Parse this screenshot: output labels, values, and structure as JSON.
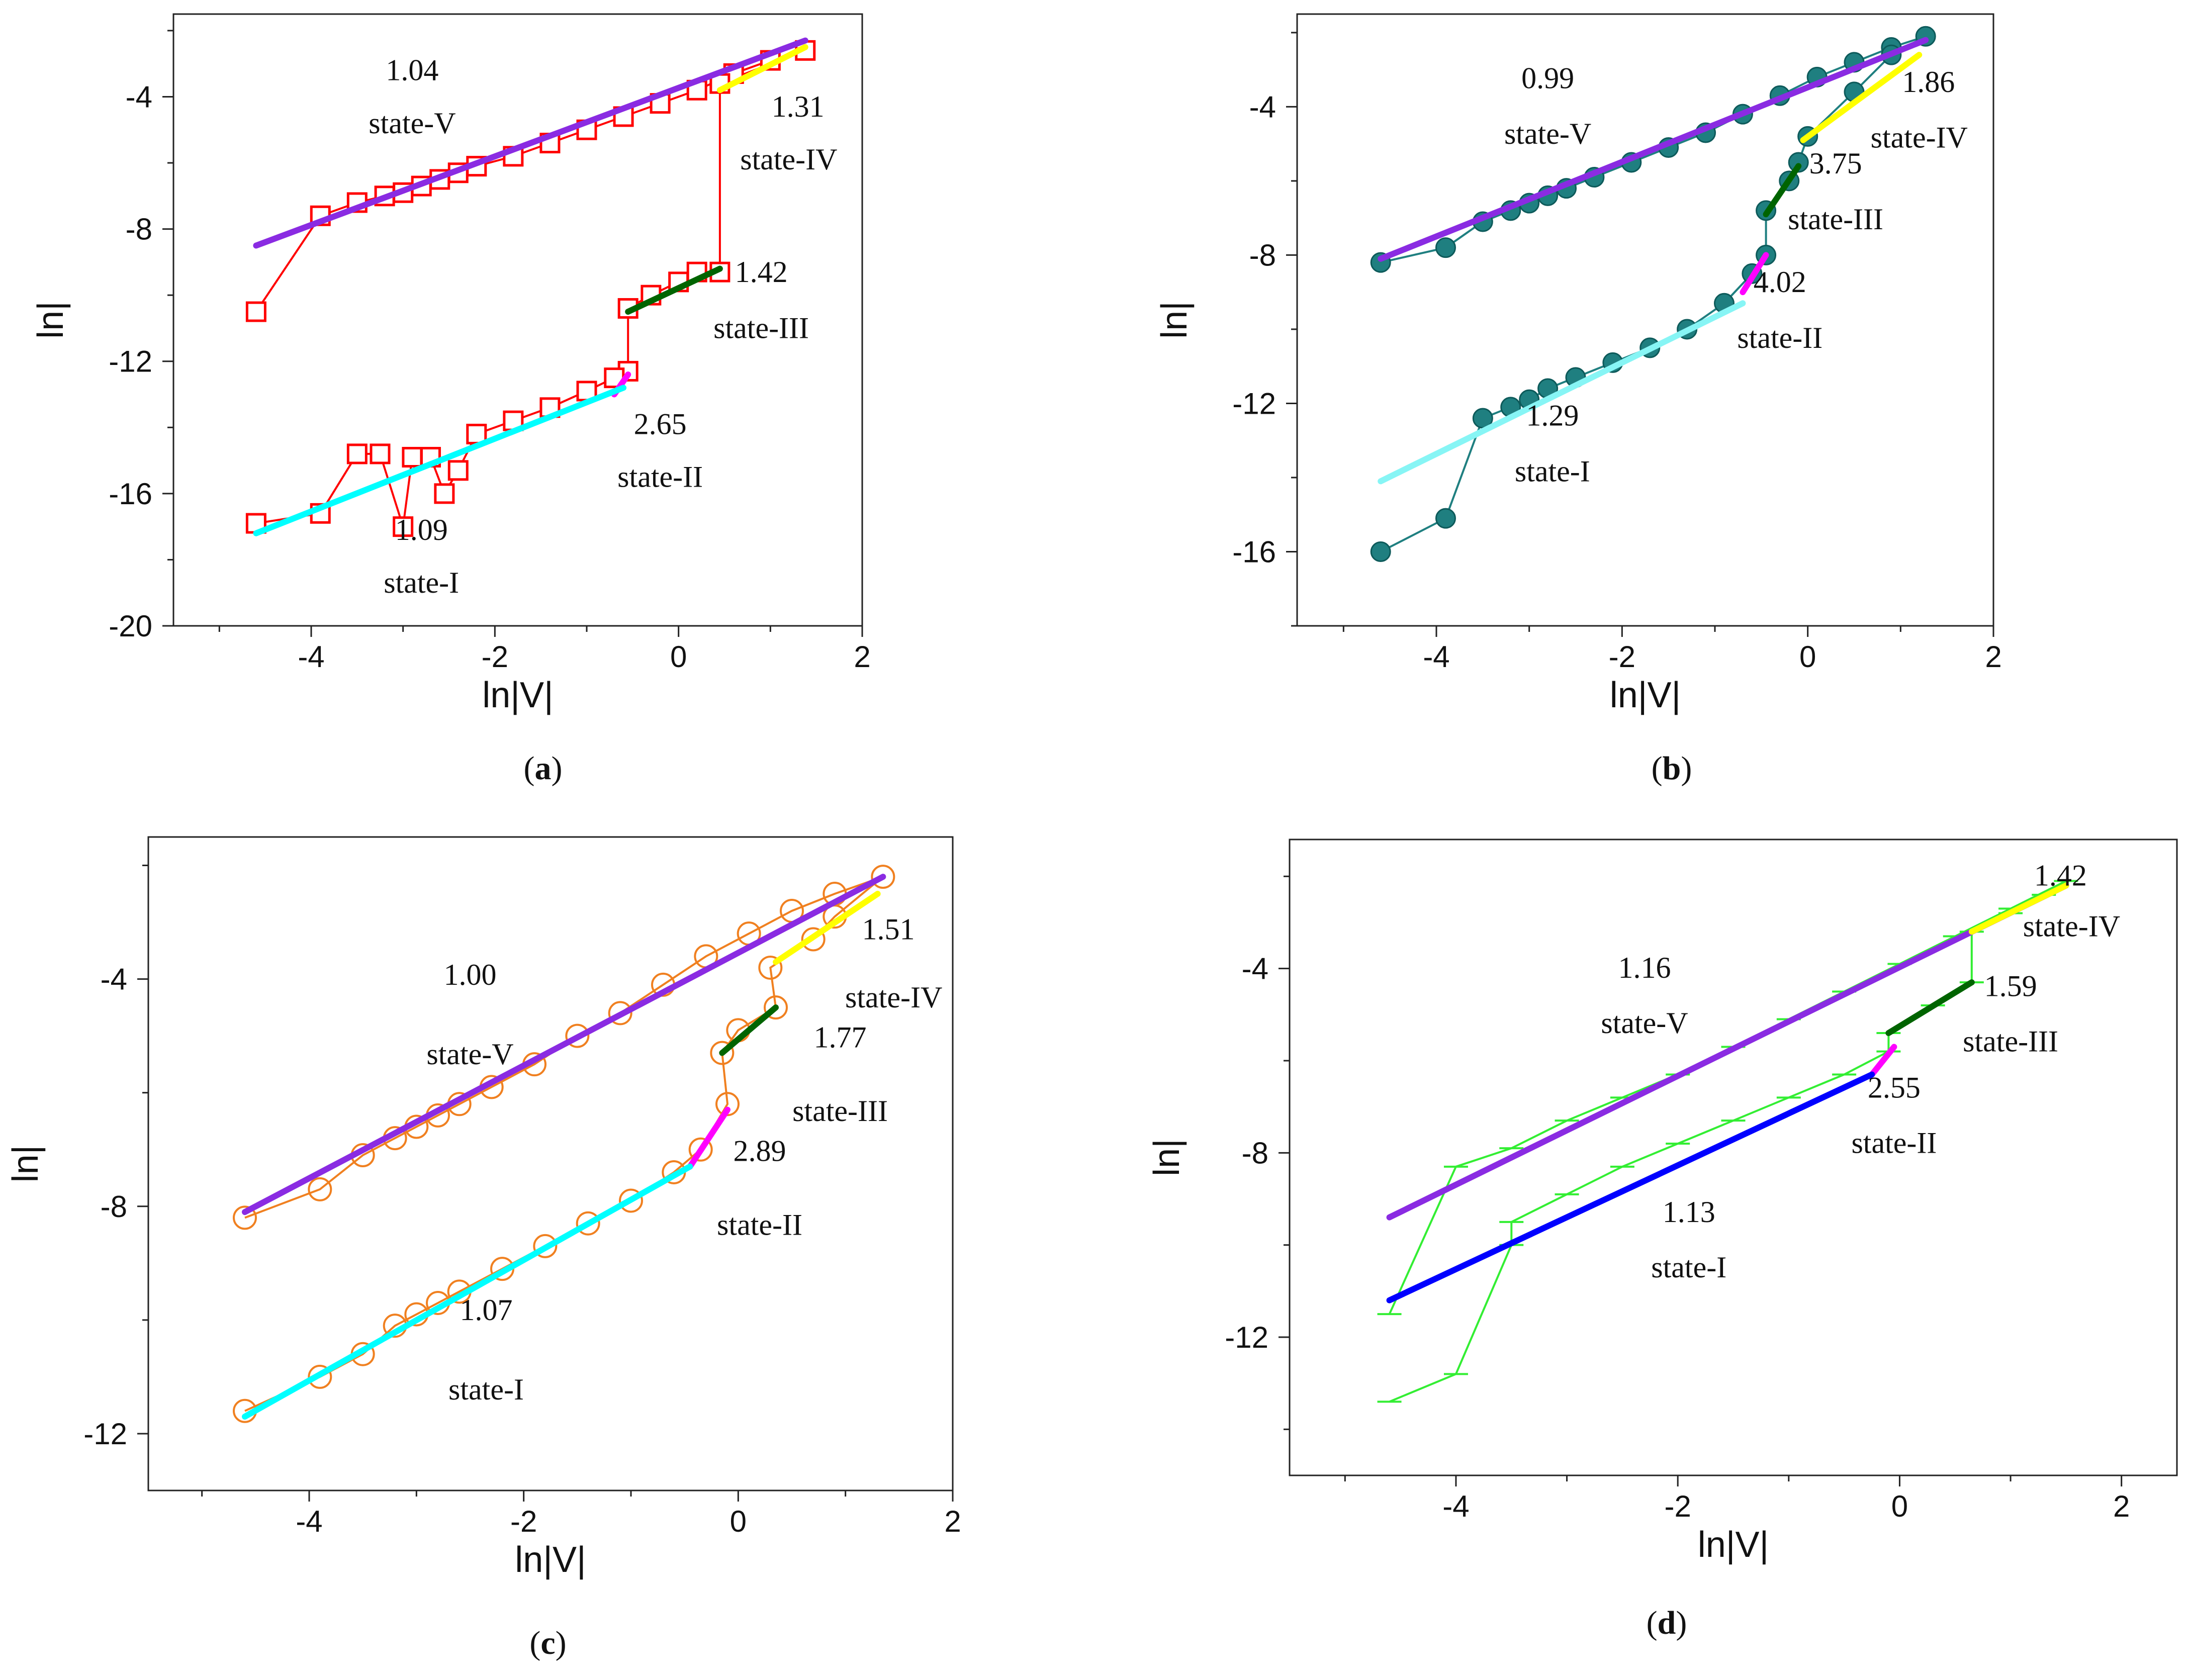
{
  "chart_data": [
    {
      "type": "line",
      "panel_label": "a",
      "caption_open": "(",
      "caption_close": ")",
      "xlabel": "ln|V|",
      "ylabel": "ln|",
      "xlim": [
        -5.5,
        2
      ],
      "ylim": [
        -20,
        -1.5
      ],
      "xticks": [
        -4,
        -2,
        0,
        2
      ],
      "yticks": [
        -4,
        -8,
        -12,
        -16,
        -20
      ],
      "colors": {
        "marker": "#ff0000"
      },
      "marker": "open-square",
      "data": [
        [
          -4.6,
          -10.5
        ],
        [
          -3.9,
          -7.6
        ],
        [
          -3.5,
          -7.2
        ],
        [
          -3.2,
          -7.0
        ],
        [
          -3.0,
          -6.9
        ],
        [
          -2.8,
          -6.7
        ],
        [
          -2.6,
          -6.5
        ],
        [
          -2.4,
          -6.3
        ],
        [
          -2.2,
          -6.1
        ],
        [
          -1.8,
          -5.8
        ],
        [
          -1.4,
          -5.4
        ],
        [
          -1.0,
          -5.0
        ],
        [
          -0.6,
          -4.6
        ],
        [
          -0.2,
          -4.2
        ],
        [
          0.2,
          -3.8
        ],
        [
          0.6,
          -3.3
        ],
        [
          1.0,
          -2.9
        ],
        [
          1.38,
          -2.6
        ],
        [
          0.45,
          -3.6
        ],
        [
          0.45,
          -9.3
        ],
        [
          0.2,
          -9.3
        ],
        [
          0.0,
          -9.6
        ],
        [
          -0.3,
          -10.0
        ],
        [
          -0.55,
          -10.4
        ],
        [
          -0.55,
          -12.3
        ],
        [
          -0.7,
          -12.5
        ],
        [
          -1.0,
          -12.9
        ],
        [
          -1.4,
          -13.4
        ],
        [
          -1.8,
          -13.8
        ],
        [
          -2.2,
          -14.2
        ],
        [
          -2.4,
          -15.3
        ],
        [
          -2.55,
          -16.0
        ],
        [
          -2.7,
          -14.9
        ],
        [
          -2.9,
          -14.9
        ],
        [
          -3.0,
          -17.0
        ],
        [
          -3.25,
          -14.8
        ],
        [
          -3.5,
          -14.8
        ],
        [
          -3.9,
          -16.6
        ],
        [
          -4.6,
          -16.9
        ]
      ],
      "fits": [
        {
          "state": "state-V",
          "slope_label": "1.04",
          "color": "#8a2be2",
          "x": [
            -4.6,
            1.38
          ],
          "y": [
            -8.5,
            -2.3
          ],
          "slope_pos": [
            -2.9,
            -3.5
          ],
          "state_pos": [
            -2.9,
            -5.1
          ],
          "anchor": "middle"
        },
        {
          "state": "state-IV",
          "slope_label": "1.31",
          "color": "#ffff00",
          "x": [
            0.45,
            1.38
          ],
          "y": [
            -3.8,
            -2.5
          ],
          "slope_pos": [
            1.3,
            -4.6
          ],
          "state_pos": [
            1.2,
            -6.2
          ],
          "anchor": "middle"
        },
        {
          "state": "state-III",
          "slope_label": "1.42",
          "color": "#006400",
          "x": [
            -0.55,
            0.45
          ],
          "y": [
            -10.5,
            -9.2
          ],
          "slope_pos": [
            0.9,
            -9.6
          ],
          "state_pos": [
            0.9,
            -11.3
          ],
          "anchor": "middle"
        },
        {
          "state": "state-II",
          "slope_label": "2.65",
          "color": "#ff00ff",
          "x": [
            -0.7,
            -0.55
          ],
          "y": [
            -13.0,
            -12.4
          ],
          "slope_pos": [
            -0.2,
            -14.2
          ],
          "state_pos": [
            -0.2,
            -15.8
          ],
          "anchor": "middle"
        },
        {
          "state": "state-I",
          "slope_label": "1.09",
          "color": "#00ffff",
          "x": [
            -4.6,
            -0.6
          ],
          "y": [
            -17.2,
            -12.8
          ],
          "slope_pos": [
            -2.8,
            -17.4
          ],
          "state_pos": [
            -2.8,
            -19.0
          ],
          "anchor": "middle"
        }
      ]
    },
    {
      "type": "line",
      "panel_label": "b",
      "caption_open": "(",
      "caption_close": ")",
      "xlabel": "ln|V|",
      "ylabel": "ln|",
      "xlim": [
        -5.5,
        2
      ],
      "ylim": [
        -18,
        -1.5
      ],
      "xticks": [
        -4,
        -2,
        0,
        2
      ],
      "yticks": [
        -4,
        -8,
        -12,
        -16
      ],
      "colors": {
        "marker": "#1f7f80"
      },
      "marker": "filled-circle",
      "data": [
        [
          -4.6,
          -8.2
        ],
        [
          -3.9,
          -7.8
        ],
        [
          -3.5,
          -7.1
        ],
        [
          -3.2,
          -6.8
        ],
        [
          -3.0,
          -6.6
        ],
        [
          -2.8,
          -6.4
        ],
        [
          -2.6,
          -6.2
        ],
        [
          -2.3,
          -5.9
        ],
        [
          -1.9,
          -5.5
        ],
        [
          -1.5,
          -5.1
        ],
        [
          -1.1,
          -4.7
        ],
        [
          -0.7,
          -4.2
        ],
        [
          -0.3,
          -3.7
        ],
        [
          0.1,
          -3.2
        ],
        [
          0.5,
          -2.8
        ],
        [
          0.9,
          -2.4
        ],
        [
          1.27,
          -2.1
        ],
        [
          0.9,
          -2.6
        ],
        [
          0.5,
          -3.6
        ],
        [
          0.0,
          -4.8
        ],
        [
          -0.1,
          -5.5
        ],
        [
          -0.2,
          -6.0
        ],
        [
          -0.45,
          -6.8
        ],
        [
          -0.45,
          -8.0
        ],
        [
          -0.6,
          -8.5
        ],
        [
          -0.9,
          -9.3
        ],
        [
          -1.3,
          -10.0
        ],
        [
          -1.7,
          -10.5
        ],
        [
          -2.1,
          -10.9
        ],
        [
          -2.5,
          -11.3
        ],
        [
          -2.8,
          -11.6
        ],
        [
          -3.0,
          -11.9
        ],
        [
          -3.2,
          -12.1
        ],
        [
          -3.5,
          -12.4
        ],
        [
          -3.9,
          -15.1
        ],
        [
          -4.6,
          -16.0
        ]
      ],
      "fits": [
        {
          "state": "state-V",
          "slope_label": "0.99",
          "color": "#8a2be2",
          "x": [
            -4.6,
            1.27
          ],
          "y": [
            -8.1,
            -2.2
          ],
          "slope_pos": [
            -2.8,
            -3.5
          ],
          "state_pos": [
            -2.8,
            -5.0
          ],
          "anchor": "middle"
        },
        {
          "state": "state-IV",
          "slope_label": "1.86",
          "color": "#ffff00",
          "x": [
            -0.05,
            1.2
          ],
          "y": [
            -4.9,
            -2.6
          ],
          "slope_pos": [
            1.3,
            -3.6
          ],
          "state_pos": [
            1.2,
            -5.1
          ],
          "anchor": "middle"
        },
        {
          "state": "state-III",
          "slope_label": "3.75",
          "color": "#006400",
          "x": [
            -0.45,
            -0.1
          ],
          "y": [
            -6.9,
            -5.6
          ],
          "slope_pos": [
            0.3,
            -5.8
          ],
          "state_pos": [
            0.3,
            -7.3
          ],
          "anchor": "middle"
        },
        {
          "state": "state-II",
          "slope_label": "4.02",
          "color": "#ff00ff",
          "x": [
            -0.7,
            -0.45
          ],
          "y": [
            -9.0,
            -8.0
          ],
          "slope_pos": [
            -0.3,
            -9.0
          ],
          "state_pos": [
            -0.3,
            -10.5
          ],
          "anchor": "middle"
        },
        {
          "state": "state-I",
          "slope_label": "1.29",
          "color": "#87f5f5",
          "x": [
            -4.6,
            -0.7
          ],
          "y": [
            -14.1,
            -9.3
          ],
          "slope_pos": [
            -2.75,
            -12.6
          ],
          "state_pos": [
            -2.75,
            -14.1
          ],
          "anchor": "middle"
        }
      ]
    },
    {
      "type": "line",
      "panel_label": "c",
      "caption_open": "(",
      "caption_close": ")",
      "xlabel": "ln|V|",
      "ylabel": "ln|",
      "xlim": [
        -5.5,
        2
      ],
      "ylim": [
        -13,
        -1.5
      ],
      "xticks": [
        -4,
        -2,
        0,
        2
      ],
      "yticks": [
        -4,
        -8,
        -12
      ],
      "colors": {
        "marker": "#f08020"
      },
      "marker": "open-circle",
      "data": [
        [
          -4.6,
          -8.2
        ],
        [
          -3.9,
          -7.7
        ],
        [
          -3.5,
          -7.1
        ],
        [
          -3.2,
          -6.8
        ],
        [
          -3.0,
          -6.6
        ],
        [
          -2.8,
          -6.4
        ],
        [
          -2.6,
          -6.2
        ],
        [
          -2.3,
          -5.9
        ],
        [
          -1.9,
          -5.5
        ],
        [
          -1.5,
          -5.0
        ],
        [
          -1.1,
          -4.6
        ],
        [
          -0.7,
          -4.1
        ],
        [
          -0.3,
          -3.6
        ],
        [
          0.1,
          -3.2
        ],
        [
          0.5,
          -2.8
        ],
        [
          0.9,
          -2.5
        ],
        [
          1.35,
          -2.2
        ],
        [
          0.9,
          -2.9
        ],
        [
          0.7,
          -3.3
        ],
        [
          0.3,
          -3.8
        ],
        [
          0.35,
          -4.5
        ],
        [
          0.0,
          -4.9
        ],
        [
          -0.15,
          -5.3
        ],
        [
          -0.1,
          -6.2
        ],
        [
          -0.35,
          -7.0
        ],
        [
          -0.6,
          -7.4
        ],
        [
          -1.0,
          -7.9
        ],
        [
          -1.4,
          -8.3
        ],
        [
          -1.8,
          -8.7
        ],
        [
          -2.2,
          -9.1
        ],
        [
          -2.6,
          -9.5
        ],
        [
          -2.8,
          -9.7
        ],
        [
          -3.0,
          -9.9
        ],
        [
          -3.2,
          -10.1
        ],
        [
          -3.5,
          -10.6
        ],
        [
          -3.9,
          -11.0
        ],
        [
          -4.6,
          -11.6
        ]
      ],
      "fits": [
        {
          "state": "state-V",
          "slope_label": "1.00",
          "color": "#8a2be2",
          "x": [
            -4.6,
            1.35
          ],
          "y": [
            -8.1,
            -2.2
          ],
          "slope_pos": [
            -2.5,
            -4.1
          ],
          "state_pos": [
            -2.5,
            -5.5
          ],
          "anchor": "middle"
        },
        {
          "state": "state-IV",
          "slope_label": "1.51",
          "color": "#ffff00",
          "x": [
            0.35,
            1.3
          ],
          "y": [
            -3.7,
            -2.5
          ],
          "slope_pos": [
            1.4,
            -3.3
          ],
          "state_pos": [
            1.45,
            -4.5
          ],
          "anchor": "middle"
        },
        {
          "state": "state-III",
          "slope_label": "1.77",
          "color": "#006400",
          "x": [
            -0.15,
            0.35
          ],
          "y": [
            -5.3,
            -4.5
          ],
          "slope_pos": [
            0.95,
            -5.2
          ],
          "state_pos": [
            0.95,
            -6.5
          ],
          "anchor": "middle"
        },
        {
          "state": "state-II",
          "slope_label": "2.89",
          "color": "#ff00ff",
          "x": [
            -0.45,
            -0.1
          ],
          "y": [
            -7.3,
            -6.3
          ],
          "slope_pos": [
            0.2,
            -7.2
          ],
          "state_pos": [
            0.2,
            -8.5
          ],
          "anchor": "middle"
        },
        {
          "state": "state-I",
          "slope_label": "1.07",
          "color": "#00ffff",
          "x": [
            -4.6,
            -0.45
          ],
          "y": [
            -11.7,
            -7.3
          ],
          "slope_pos": [
            -2.35,
            -10.0
          ],
          "state_pos": [
            -2.35,
            -11.4
          ],
          "anchor": "middle"
        }
      ]
    },
    {
      "type": "line",
      "panel_label": "d",
      "caption_open": "(",
      "caption_close": ")",
      "xlabel": "ln|V|",
      "ylabel": "ln|",
      "xlim": [
        -5.5,
        2.5
      ],
      "ylim": [
        -15,
        -1.2
      ],
      "xticks": [
        -4,
        -2,
        0,
        2
      ],
      "yticks": [
        -4,
        -8,
        -12
      ],
      "colors": {
        "marker": "#33ee33"
      },
      "marker": "tick",
      "data": [
        [
          -4.6,
          -11.5
        ],
        [
          -4.0,
          -8.3
        ],
        [
          -3.5,
          -7.9
        ],
        [
          -3.0,
          -7.3
        ],
        [
          -2.5,
          -6.8
        ],
        [
          -2.0,
          -6.3
        ],
        [
          -1.5,
          -5.7
        ],
        [
          -1.0,
          -5.1
        ],
        [
          -0.5,
          -4.5
        ],
        [
          0.0,
          -3.9
        ],
        [
          0.5,
          -3.3
        ],
        [
          1.0,
          -2.7
        ],
        [
          1.5,
          -2.1
        ],
        [
          1.3,
          -2.4
        ],
        [
          1.0,
          -2.8
        ],
        [
          0.65,
          -3.2
        ],
        [
          0.65,
          -4.3
        ],
        [
          0.3,
          -4.8
        ],
        [
          -0.1,
          -5.4
        ],
        [
          -0.1,
          -5.8
        ],
        [
          -0.5,
          -6.3
        ],
        [
          -1.0,
          -6.8
        ],
        [
          -1.5,
          -7.3
        ],
        [
          -2.0,
          -7.8
        ],
        [
          -2.5,
          -8.3
        ],
        [
          -3.0,
          -8.9
        ],
        [
          -3.5,
          -9.5
        ],
        [
          -3.5,
          -10.0
        ],
        [
          -4.0,
          -12.8
        ],
        [
          -4.6,
          -13.4
        ]
      ],
      "fits": [
        {
          "state": "state-V",
          "slope_label": "1.16",
          "color": "#8a2be2",
          "x": [
            -4.6,
            1.5
          ],
          "y": [
            -9.4,
            -2.2
          ],
          "slope_pos": [
            -2.3,
            -4.2
          ],
          "state_pos": [
            -2.3,
            -5.4
          ],
          "anchor": "middle"
        },
        {
          "state": "state-IV",
          "slope_label": "1.42",
          "color": "#ffff00",
          "x": [
            0.65,
            1.5
          ],
          "y": [
            -3.2,
            -2.2
          ],
          "slope_pos": [
            1.45,
            -2.2
          ],
          "state_pos": [
            1.55,
            -3.3
          ],
          "anchor": "middle"
        },
        {
          "state": "state-III",
          "slope_label": "1.59",
          "color": "#006400",
          "x": [
            -0.1,
            0.65
          ],
          "y": [
            -5.4,
            -4.3
          ],
          "slope_pos": [
            1.0,
            -4.6
          ],
          "state_pos": [
            1.0,
            -5.8
          ],
          "anchor": "middle"
        },
        {
          "state": "state-II",
          "slope_label": "2.55",
          "color": "#ff00ff",
          "x": [
            -0.25,
            -0.05
          ],
          "y": [
            -6.3,
            -5.7
          ],
          "slope_pos": [
            -0.05,
            -6.8
          ],
          "state_pos": [
            -0.05,
            -8.0
          ],
          "anchor": "middle"
        },
        {
          "state": "state-I",
          "slope_label": "1.13",
          "color": "#0000ff",
          "x": [
            -4.6,
            -0.25
          ],
          "y": [
            -11.2,
            -6.3
          ],
          "slope_pos": [
            -1.9,
            -9.5
          ],
          "state_pos": [
            -1.9,
            -10.7
          ],
          "anchor": "middle"
        }
      ]
    }
  ]
}
